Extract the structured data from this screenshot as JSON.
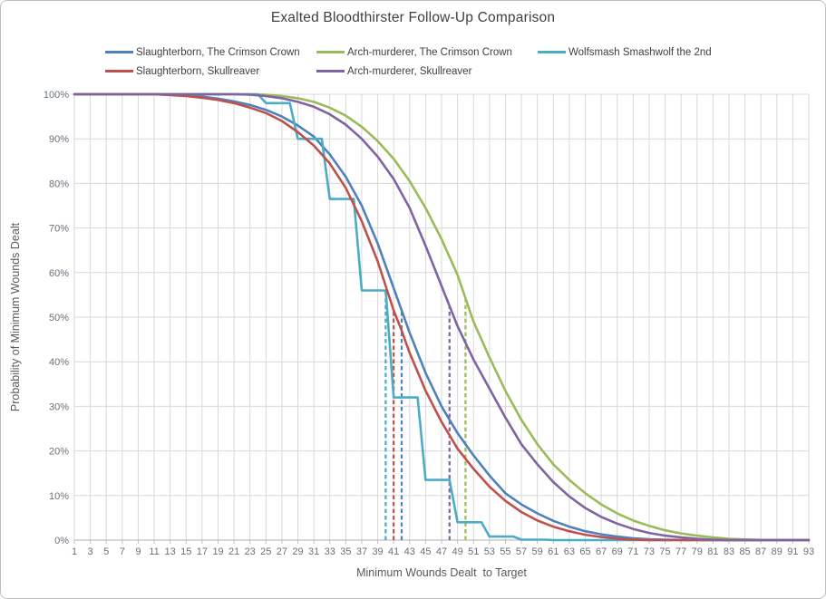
{
  "chart": {
    "title": "Exalted Bloodthirster Follow-Up Comparison",
    "x_axis_title": "Minimum Wounds Dealt  to Target",
    "y_axis_title": "Probability of Minimum Wounds Dealt"
  },
  "colors": {
    "gridline": "#d9d9d9",
    "axis_line": "#bfbfbf",
    "tick_label": "#67717c",
    "title_text": "#3f3f3f",
    "axis_title_text": "#595959",
    "frame_border": "#bdbdbd",
    "background": "#ffffff"
  },
  "chart_data": {
    "type": "line",
    "title": "Exalted Bloodthirster Follow-Up Comparison",
    "xlabel": "Minimum Wounds Dealt  to Target",
    "ylabel": "Probability of Minimum Wounds Dealt",
    "x_range": [
      1,
      93
    ],
    "ylim_pct": [
      0,
      100
    ],
    "grid": true,
    "legend_position": "top",
    "x_tick_labels": [
      1,
      3,
      5,
      7,
      9,
      11,
      13,
      15,
      17,
      19,
      21,
      23,
      25,
      27,
      29,
      31,
      33,
      35,
      37,
      39,
      41,
      43,
      45,
      47,
      49,
      51,
      53,
      55,
      57,
      59,
      61,
      63,
      65,
      67,
      69,
      71,
      73,
      75,
      77,
      79,
      81,
      83,
      85,
      87,
      89,
      91,
      93
    ],
    "y_tick_labels": [
      "0%",
      "10%",
      "20%",
      "30%",
      "40%",
      "50%",
      "60%",
      "70%",
      "80%",
      "90%",
      "100%"
    ],
    "series": [
      {
        "name": "Slaughterborn, The Crimson Crown",
        "color": "#4F81BD",
        "style": "solid",
        "points": [
          [
            1,
            100
          ],
          [
            11,
            100
          ],
          [
            13,
            99.9
          ],
          [
            15,
            99.8
          ],
          [
            17,
            99.5
          ],
          [
            19,
            99
          ],
          [
            21,
            98.4
          ],
          [
            23,
            97.6
          ],
          [
            25,
            96.5
          ],
          [
            27,
            95
          ],
          [
            29,
            93
          ],
          [
            31,
            90.5
          ],
          [
            33,
            86.5
          ],
          [
            35,
            81.5
          ],
          [
            37,
            75
          ],
          [
            39,
            66.5
          ],
          [
            41,
            56.5
          ],
          [
            42,
            51.5
          ],
          [
            43,
            46.5
          ],
          [
            45,
            37.5
          ],
          [
            47,
            30
          ],
          [
            49,
            24
          ],
          [
            51,
            19
          ],
          [
            53,
            14.5
          ],
          [
            55,
            10.5
          ],
          [
            57,
            8
          ],
          [
            59,
            6
          ],
          [
            61,
            4.3
          ],
          [
            63,
            3
          ],
          [
            65,
            2
          ],
          [
            67,
            1.3
          ],
          [
            69,
            0.8
          ],
          [
            71,
            0.4
          ],
          [
            73,
            0.2
          ],
          [
            75,
            0.1
          ],
          [
            77,
            0.05
          ],
          [
            79,
            0
          ],
          [
            93,
            0
          ]
        ]
      },
      {
        "name": "Arch-murderer, The Crimson Crown",
        "color": "#9BBB59",
        "style": "solid",
        "points": [
          [
            1,
            100
          ],
          [
            23,
            100
          ],
          [
            25,
            99.9
          ],
          [
            27,
            99.6
          ],
          [
            29,
            99.1
          ],
          [
            31,
            98.3
          ],
          [
            33,
            97
          ],
          [
            35,
            95.2
          ],
          [
            37,
            92.7
          ],
          [
            39,
            89.5
          ],
          [
            41,
            85.5
          ],
          [
            43,
            80.5
          ],
          [
            45,
            74.5
          ],
          [
            47,
            67.5
          ],
          [
            49,
            59.5
          ],
          [
            51,
            49
          ],
          [
            53,
            41
          ],
          [
            55,
            33.5
          ],
          [
            57,
            27
          ],
          [
            59,
            21.5
          ],
          [
            61,
            17
          ],
          [
            63,
            13.5
          ],
          [
            65,
            10.5
          ],
          [
            67,
            8
          ],
          [
            69,
            6
          ],
          [
            71,
            4.4
          ],
          [
            73,
            3.2
          ],
          [
            75,
            2.2
          ],
          [
            77,
            1.5
          ],
          [
            79,
            1
          ],
          [
            81,
            0.6
          ],
          [
            83,
            0.3
          ],
          [
            85,
            0.15
          ],
          [
            87,
            0.05
          ],
          [
            89,
            0
          ],
          [
            93,
            0
          ]
        ]
      },
      {
        "name": "Wolfsmash Smashwolf the 2nd",
        "color": "#4BACC6",
        "style": "solid-step",
        "points": [
          [
            1,
            100
          ],
          [
            24,
            100
          ],
          [
            25,
            98
          ],
          [
            28,
            98
          ],
          [
            29,
            90
          ],
          [
            32,
            90
          ],
          [
            33,
            76.5
          ],
          [
            36,
            76.5
          ],
          [
            37,
            56
          ],
          [
            40,
            56
          ],
          [
            41,
            32
          ],
          [
            44,
            32
          ],
          [
            45,
            13.5
          ],
          [
            48,
            13.5
          ],
          [
            49,
            4
          ],
          [
            52,
            4
          ],
          [
            53,
            0.8
          ],
          [
            56,
            0.8
          ],
          [
            57,
            0.1
          ],
          [
            60,
            0.1
          ],
          [
            61,
            0
          ],
          [
            93,
            0
          ]
        ]
      },
      {
        "name": "Slaughterborn, Skullreaver",
        "color": "#C0504D",
        "style": "solid",
        "points": [
          [
            1,
            100
          ],
          [
            11,
            100
          ],
          [
            13,
            99.8
          ],
          [
            15,
            99.6
          ],
          [
            17,
            99.2
          ],
          [
            19,
            98.7
          ],
          [
            21,
            98
          ],
          [
            23,
            97
          ],
          [
            25,
            95.8
          ],
          [
            27,
            94
          ],
          [
            29,
            91.5
          ],
          [
            31,
            88.5
          ],
          [
            33,
            84.5
          ],
          [
            35,
            79
          ],
          [
            37,
            71.5
          ],
          [
            39,
            62.5
          ],
          [
            41,
            51.5
          ],
          [
            42,
            47
          ],
          [
            43,
            42
          ],
          [
            45,
            33.5
          ],
          [
            47,
            26.5
          ],
          [
            49,
            20.5
          ],
          [
            51,
            16
          ],
          [
            53,
            12
          ],
          [
            55,
            8.8
          ],
          [
            57,
            6.3
          ],
          [
            59,
            4.4
          ],
          [
            61,
            3
          ],
          [
            63,
            2
          ],
          [
            65,
            1.2
          ],
          [
            67,
            0.7
          ],
          [
            69,
            0.3
          ],
          [
            71,
            0.1
          ],
          [
            73,
            0
          ],
          [
            93,
            0
          ]
        ]
      },
      {
        "name": "Arch-murderer, Skullreaver",
        "color": "#8064A2",
        "style": "solid",
        "points": [
          [
            1,
            100
          ],
          [
            21,
            100
          ],
          [
            23,
            99.9
          ],
          [
            25,
            99.6
          ],
          [
            27,
            99.1
          ],
          [
            29,
            98.3
          ],
          [
            31,
            97.2
          ],
          [
            33,
            95.5
          ],
          [
            35,
            93.2
          ],
          [
            37,
            90
          ],
          [
            39,
            86
          ],
          [
            41,
            81
          ],
          [
            43,
            74.5
          ],
          [
            45,
            66
          ],
          [
            47,
            57
          ],
          [
            49,
            48
          ],
          [
            51,
            40.5
          ],
          [
            53,
            34
          ],
          [
            55,
            27.5
          ],
          [
            57,
            21.5
          ],
          [
            59,
            17
          ],
          [
            61,
            13
          ],
          [
            63,
            9.8
          ],
          [
            65,
            7.2
          ],
          [
            67,
            5.2
          ],
          [
            69,
            3.7
          ],
          [
            71,
            2.5
          ],
          [
            73,
            1.6
          ],
          [
            75,
            1
          ],
          [
            77,
            0.6
          ],
          [
            79,
            0.3
          ],
          [
            81,
            0.1
          ],
          [
            83,
            0
          ],
          [
            93,
            0
          ]
        ]
      }
    ],
    "median_lines": [
      {
        "series": "Wolfsmash Smashwolf the 2nd",
        "x": 40,
        "top_pct": 56,
        "color": "#4BACC6",
        "style": "dashed"
      },
      {
        "series": "Slaughterborn, Skullreaver",
        "x": 41,
        "top_pct": 51.5,
        "color": "#C0504D",
        "style": "dashed"
      },
      {
        "series": "Slaughterborn, The Crimson Crown",
        "x": 42,
        "top_pct": 51.5,
        "color": "#4F81BD",
        "style": "dashed"
      },
      {
        "series": "Arch-murderer, Skullreaver",
        "x": 48,
        "top_pct": 52.5,
        "color": "#8064A2",
        "style": "dashed"
      },
      {
        "series": "Arch-murderer, The Crimson Crown",
        "x": 50,
        "top_pct": 54,
        "color": "#9BBB59",
        "style": "dashed"
      }
    ]
  }
}
